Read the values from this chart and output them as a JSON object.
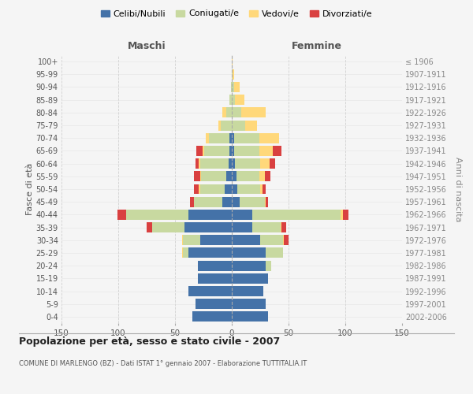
{
  "age_groups": [
    "0-4",
    "5-9",
    "10-14",
    "15-19",
    "20-24",
    "25-29",
    "30-34",
    "35-39",
    "40-44",
    "45-49",
    "50-54",
    "55-59",
    "60-64",
    "65-69",
    "70-74",
    "75-79",
    "80-84",
    "85-89",
    "90-94",
    "95-99",
    "100+"
  ],
  "birth_years": [
    "2002-2006",
    "1997-2001",
    "1992-1996",
    "1987-1991",
    "1982-1986",
    "1977-1981",
    "1972-1976",
    "1967-1971",
    "1962-1966",
    "1957-1961",
    "1952-1956",
    "1947-1951",
    "1942-1946",
    "1937-1941",
    "1932-1936",
    "1927-1931",
    "1922-1926",
    "1917-1921",
    "1912-1916",
    "1907-1911",
    "≤ 1906"
  ],
  "maschi": {
    "celibi": [
      35,
      32,
      38,
      30,
      30,
      38,
      28,
      42,
      38,
      8,
      6,
      5,
      3,
      2,
      2,
      0,
      0,
      0,
      0,
      0,
      0
    ],
    "coniugati": [
      0,
      0,
      0,
      0,
      0,
      5,
      15,
      28,
      55,
      25,
      22,
      22,
      25,
      22,
      18,
      10,
      5,
      2,
      1,
      0,
      0
    ],
    "vedovi": [
      0,
      0,
      0,
      0,
      0,
      1,
      1,
      0,
      0,
      0,
      1,
      1,
      1,
      2,
      3,
      2,
      3,
      0,
      0,
      0,
      0
    ],
    "divorziati": [
      0,
      0,
      0,
      0,
      0,
      0,
      0,
      5,
      8,
      4,
      4,
      5,
      3,
      5,
      0,
      0,
      0,
      0,
      0,
      0,
      0
    ]
  },
  "femmine": {
    "nubili": [
      32,
      30,
      28,
      32,
      30,
      30,
      25,
      18,
      18,
      7,
      5,
      4,
      3,
      2,
      2,
      0,
      0,
      0,
      0,
      0,
      0
    ],
    "coniugate": [
      0,
      0,
      0,
      0,
      5,
      15,
      20,
      25,
      78,
      22,
      20,
      20,
      22,
      22,
      22,
      12,
      8,
      3,
      2,
      1,
      0
    ],
    "vedove": [
      0,
      0,
      0,
      0,
      0,
      0,
      1,
      1,
      2,
      1,
      2,
      5,
      8,
      12,
      18,
      10,
      22,
      8,
      5,
      1,
      1
    ],
    "divorziate": [
      0,
      0,
      0,
      0,
      0,
      0,
      4,
      4,
      5,
      2,
      3,
      5,
      5,
      8,
      0,
      0,
      0,
      0,
      0,
      0,
      0
    ]
  },
  "colors": {
    "celibi": "#4472a8",
    "coniugati": "#c8d9a0",
    "vedovi": "#ffd87a",
    "divorziati": "#d94040"
  },
  "title": "Popolazione per età, sesso e stato civile - 2007",
  "subtitle": "COMUNE DI MARLENGO (BZ) - Dati ISTAT 1° gennaio 2007 - Elaborazione TUTTITALIA.IT",
  "xlabel_left": "Maschi",
  "xlabel_right": "Femmine",
  "ylabel_left": "Fasce di età",
  "ylabel_right": "Anni di nascita",
  "xlim": 150,
  "legend_labels": [
    "Celibi/Nubili",
    "Coniugati/e",
    "Vedovi/e",
    "Divorziati/e"
  ],
  "background_color": "#f5f5f5",
  "grid_color": "#cccccc"
}
